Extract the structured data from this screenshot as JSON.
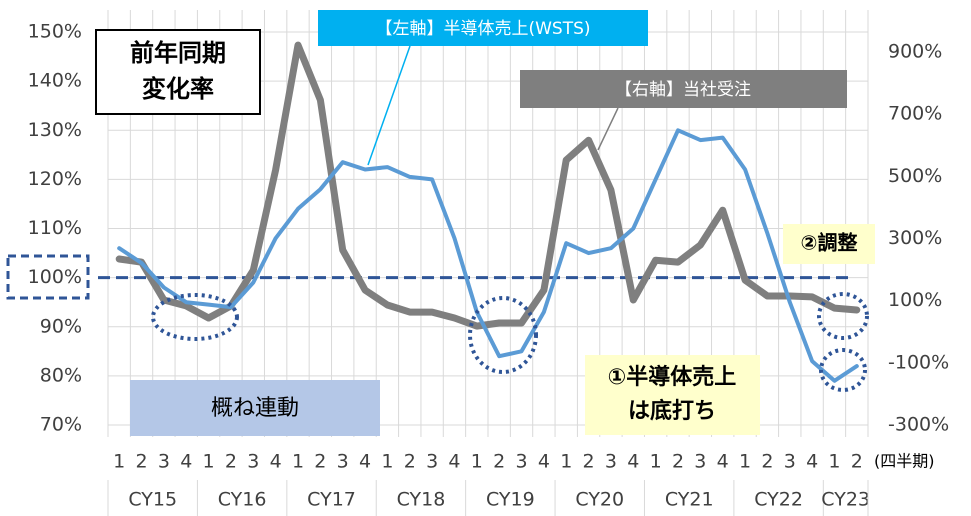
{
  "chart_data": {
    "type": "line",
    "title": "前年同期 変化率",
    "categories": [
      "1",
      "2",
      "3",
      "4",
      "1",
      "2",
      "3",
      "4",
      "1",
      "2",
      "3",
      "4",
      "1",
      "2",
      "3",
      "4",
      "1",
      "2",
      "3",
      "4",
      "1",
      "2",
      "3",
      "4",
      "1",
      "2",
      "3",
      "4",
      "1",
      "2",
      "3",
      "4",
      "1",
      "2"
    ],
    "groups": [
      "CY15",
      "CY16",
      "CY17",
      "CY18",
      "CY19",
      "CY20",
      "CY21",
      "CY22",
      "CY23"
    ],
    "x_unit": "(四半期)",
    "series": [
      {
        "name": "【左軸】半導体売上(WSTS)",
        "color": "#5b9bd5",
        "axis": "y",
        "values": [
          106,
          103,
          98,
          95,
          94.5,
          94,
          99,
          108,
          114,
          118,
          123.5,
          122,
          122.5,
          120.5,
          120,
          108,
          93,
          84,
          85,
          93,
          107,
          105,
          106,
          110,
          120,
          130,
          128,
          128.5,
          122,
          109,
          95,
          83,
          79,
          82
        ]
      },
      {
        "name": "【右軸】当社受注",
        "color": "#7f7f7f",
        "axis": "y2",
        "values": [
          234,
          224,
          102,
          83,
          44,
          83,
          198,
          520,
          922,
          745,
          263,
          134,
          86,
          63,
          63,
          44,
          18,
          28,
          28,
          134,
          552,
          616,
          456,
          102,
          230,
          224,
          279,
          391,
          166,
          115,
          115,
          112,
          76,
          70
        ]
      }
    ],
    "reference_line": 100,
    "annotations": [
      "概ね連動",
      "①半導体売上 は底打ち",
      "②調整"
    ],
    "ylim": [
      70,
      150
    ],
    "yticks": [
      {
        "value": 70,
        "label": "70%"
      },
      {
        "value": 80,
        "label": "80%"
      },
      {
        "value": 90,
        "label": "90%"
      },
      {
        "value": 100,
        "label": "100%"
      },
      {
        "value": 110,
        "label": "110%"
      },
      {
        "value": 120,
        "label": "120%"
      },
      {
        "value": 130,
        "label": "130%"
      },
      {
        "value": 140,
        "label": "140%"
      },
      {
        "value": 150,
        "label": "150%"
      }
    ],
    "y2lim": [
      -300,
      964
    ],
    "y2ticks": [
      {
        "value": -300,
        "label": "-300%"
      },
      {
        "value": -100,
        "label": "-100%"
      },
      {
        "value": 100,
        "label": "100%"
      },
      {
        "value": 300,
        "label": "300%"
      },
      {
        "value": 500,
        "label": "500%"
      },
      {
        "value": 700,
        "label": "700%"
      },
      {
        "value": 900,
        "label": "900%"
      }
    ],
    "grid": true
  }
}
